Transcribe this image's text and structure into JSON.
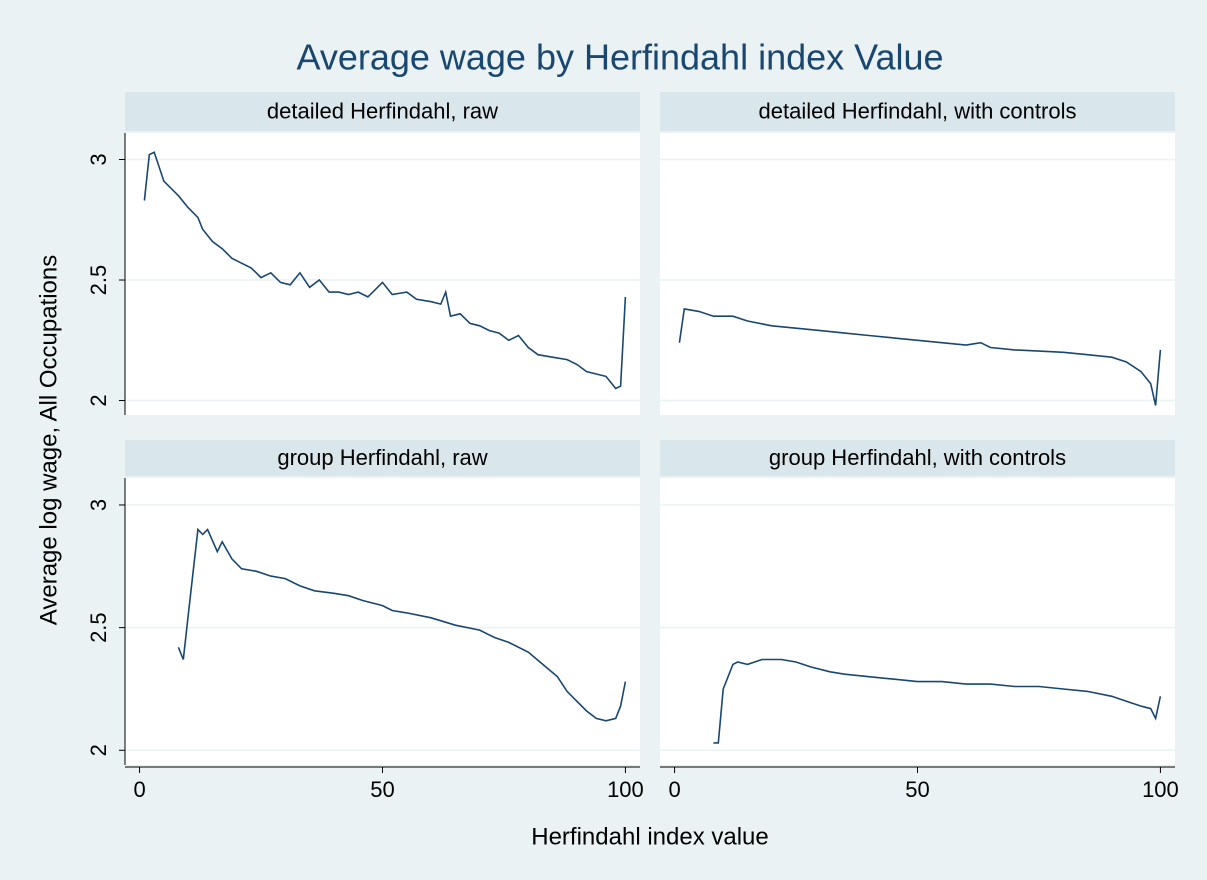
{
  "title": "Average wage by Herfindahl index Value",
  "x_label": "Herfindahl index value",
  "y_label": "Average log wage, All Occupations",
  "axes": {
    "xlim": [
      -3,
      103
    ],
    "ylim": [
      1.94,
      3.11
    ],
    "xticks": [
      0,
      50,
      100
    ],
    "yticks": [
      2,
      2.5,
      3
    ],
    "grid": true
  },
  "chart_data": [
    {
      "type": "line",
      "title": "detailed Herfindahl, raw",
      "color": "#1a476f",
      "x": [
        1,
        2,
        3,
        5,
        8,
        10,
        12,
        13,
        15,
        17,
        19,
        21,
        23,
        25,
        27,
        29,
        31,
        33,
        35,
        37,
        39,
        41,
        43,
        45,
        47,
        49,
        50,
        52,
        55,
        57,
        60,
        62,
        63,
        64,
        66,
        68,
        70,
        72,
        74,
        76,
        78,
        80,
        82,
        85,
        88,
        90,
        92,
        94,
        96,
        98,
        99,
        100
      ],
      "values": [
        2.83,
        3.02,
        3.03,
        2.91,
        2.85,
        2.8,
        2.76,
        2.71,
        2.66,
        2.63,
        2.59,
        2.57,
        2.55,
        2.51,
        2.53,
        2.49,
        2.48,
        2.53,
        2.47,
        2.5,
        2.45,
        2.45,
        2.44,
        2.45,
        2.43,
        2.47,
        2.49,
        2.44,
        2.45,
        2.42,
        2.41,
        2.4,
        2.45,
        2.35,
        2.36,
        2.32,
        2.31,
        2.29,
        2.28,
        2.25,
        2.27,
        2.22,
        2.19,
        2.18,
        2.17,
        2.15,
        2.12,
        2.11,
        2.1,
        2.05,
        2.06,
        2.43
      ]
    },
    {
      "type": "line",
      "title": "detailed Herfindahl, with controls",
      "color": "#1a476f",
      "x": [
        1,
        2,
        5,
        8,
        12,
        15,
        20,
        25,
        30,
        35,
        40,
        45,
        50,
        55,
        60,
        63,
        65,
        70,
        75,
        80,
        85,
        90,
        93,
        96,
        98,
        99,
        100
      ],
      "values": [
        2.24,
        2.38,
        2.37,
        2.35,
        2.35,
        2.33,
        2.31,
        2.3,
        2.29,
        2.28,
        2.27,
        2.26,
        2.25,
        2.24,
        2.23,
        2.24,
        2.22,
        2.21,
        2.205,
        2.2,
        2.19,
        2.18,
        2.16,
        2.12,
        2.07,
        1.98,
        2.21
      ]
    },
    {
      "type": "line",
      "title": "group Herfindahl, raw",
      "color": "#1a476f",
      "x": [
        8,
        9,
        10,
        12,
        13,
        14,
        16,
        17,
        19,
        21,
        24,
        27,
        30,
        33,
        36,
        40,
        43,
        46,
        50,
        52,
        55,
        60,
        65,
        70,
        73,
        76,
        80,
        83,
        86,
        88,
        90,
        92,
        94,
        96,
        98,
        99,
        100
      ],
      "values": [
        2.42,
        2.37,
        2.55,
        2.9,
        2.88,
        2.9,
        2.81,
        2.85,
        2.78,
        2.74,
        2.73,
        2.71,
        2.7,
        2.67,
        2.65,
        2.64,
        2.63,
        2.61,
        2.59,
        2.57,
        2.56,
        2.54,
        2.51,
        2.49,
        2.46,
        2.44,
        2.4,
        2.35,
        2.3,
        2.24,
        2.2,
        2.16,
        2.13,
        2.12,
        2.13,
        2.18,
        2.28
      ]
    },
    {
      "type": "line",
      "title": "group Herfindahl, with controls",
      "color": "#1a476f",
      "x": [
        8,
        9,
        10,
        12,
        13,
        15,
        18,
        22,
        25,
        28,
        32,
        35,
        40,
        45,
        50,
        55,
        60,
        65,
        70,
        75,
        80,
        85,
        90,
        93,
        96,
        98,
        99,
        100
      ],
      "values": [
        2.03,
        2.03,
        2.25,
        2.35,
        2.36,
        2.35,
        2.37,
        2.37,
        2.36,
        2.34,
        2.32,
        2.31,
        2.3,
        2.29,
        2.28,
        2.28,
        2.27,
        2.27,
        2.26,
        2.26,
        2.25,
        2.24,
        2.22,
        2.2,
        2.18,
        2.17,
        2.13,
        2.22
      ]
    }
  ]
}
